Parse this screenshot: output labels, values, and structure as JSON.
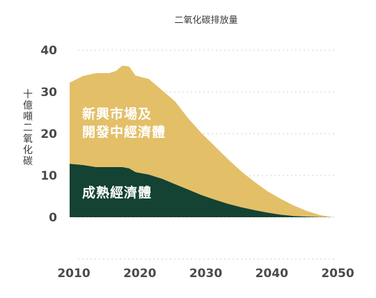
{
  "chart_data": {
    "type": "area",
    "stacked": true,
    "title": "二氧化碳排放量",
    "ylabel": "十億噸二氧化碳",
    "xlabel": "",
    "xlim": [
      2010,
      2050
    ],
    "ylim": [
      0,
      40
    ],
    "x_ticks": [
      "2010",
      "2020",
      "2030",
      "2040",
      "2050"
    ],
    "y_ticks": [
      "0",
      "10",
      "20",
      "30",
      "40"
    ],
    "grid": true,
    "colors": {
      "developed": "#144233",
      "emerging": "#e3bf68"
    },
    "series": [
      {
        "name": "成熟經濟體",
        "key": "developed",
        "x": [
          2010,
          2012,
          2014,
          2016,
          2018,
          2019,
          2020,
          2022,
          2024,
          2026,
          2028,
          2030,
          2032,
          2034,
          2036,
          2038,
          2040,
          2042,
          2044,
          2046,
          2048,
          2050
        ],
        "values": [
          12.8,
          12.5,
          12.0,
          12.0,
          12.0,
          11.7,
          10.8,
          10.2,
          9.2,
          7.9,
          6.6,
          5.3,
          4.2,
          3.2,
          2.4,
          1.7,
          1.1,
          0.6,
          0.3,
          0.15,
          0.05,
          0
        ]
      },
      {
        "name": "新興市場及\n開發中經濟體",
        "key": "emerging",
        "x": [
          2010,
          2012,
          2014,
          2016,
          2017,
          2018,
          2019,
          2020,
          2022,
          2024,
          2026,
          2028,
          2030,
          2032,
          2034,
          2036,
          2038,
          2040,
          2042,
          2044,
          2046,
          2048,
          2050
        ],
        "values": [
          19.4,
          21.3,
          22.5,
          22.5,
          23.0,
          24.3,
          24.4,
          23.1,
          22.9,
          21.2,
          19.8,
          17.0,
          14.8,
          12.8,
          10.7,
          8.6,
          6.8,
          5.1,
          3.8,
          2.5,
          1.3,
          0.45,
          0
        ]
      }
    ]
  }
}
